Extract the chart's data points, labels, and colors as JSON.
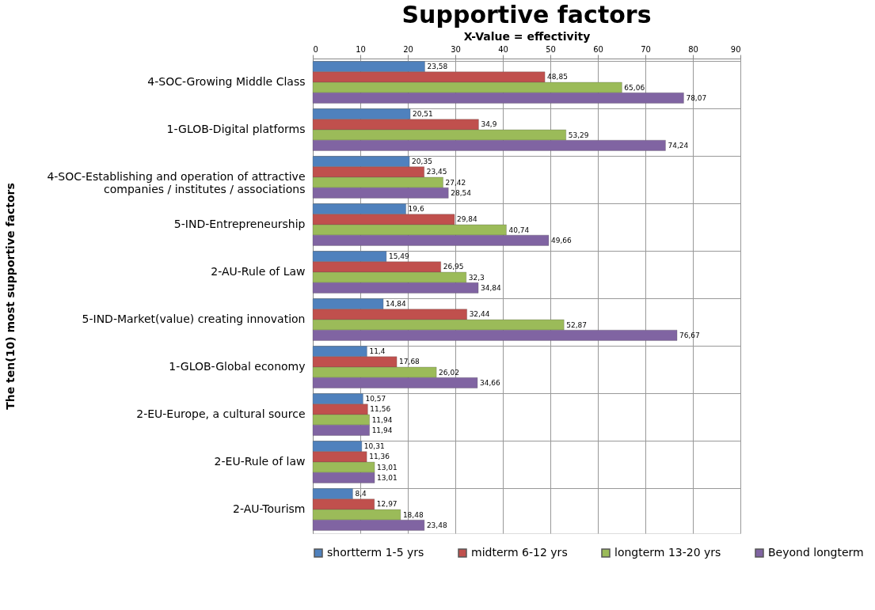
{
  "chart_data": {
    "type": "bar",
    "orientation": "horizontal",
    "title": "Supportive factors",
    "xlabel": "X-Value = effectivity",
    "ylabel": "The ten(10) most supportive factors",
    "categories": [
      "4-SOC-Growing Middle Class",
      "1-GLOB-Digital platforms",
      "4-SOC-Establishing and operation of attractive companies / institutes / associations",
      "5-IND-Entrepreneurship",
      "2-AU-Rule of Law",
      "5-IND-Market(value) creating innovation",
      "1-GLOB-Global economy",
      "2-EU-Europe, a cultural source",
      "2-EU-Rule of law",
      "2-AU-Tourism"
    ],
    "series": [
      {
        "name": "shortterm 1-5 yrs",
        "color": "#4f81bd",
        "values": [
          23.58,
          20.51,
          20.35,
          19.6,
          15.49,
          14.84,
          11.4,
          10.57,
          10.31,
          8.4
        ],
        "value_labels": [
          "23,58",
          "20,51",
          "20,35",
          "19,6",
          "15,49",
          "14,84",
          "11,4",
          "10,57",
          "10,31",
          "8,4"
        ]
      },
      {
        "name": "midterm 6-12 yrs",
        "color": "#c0504d",
        "values": [
          48.85,
          34.9,
          23.45,
          29.84,
          26.95,
          32.44,
          17.68,
          11.56,
          11.36,
          12.97
        ],
        "value_labels": [
          "48,85",
          "34,9",
          "23,45",
          "29,84",
          "26,95",
          "32,44",
          "17,68",
          "11,56",
          "11,36",
          "12,97"
        ]
      },
      {
        "name": "longterm 13-20 yrs",
        "color": "#9bbb59",
        "values": [
          65.06,
          53.29,
          27.42,
          40.74,
          32.3,
          52.87,
          26.02,
          11.94,
          13.01,
          18.48
        ],
        "value_labels": [
          "65,06",
          "53,29",
          "27,42",
          "40,74",
          "32,3",
          "52,87",
          "26,02",
          "11,94",
          "13,01",
          "18,48"
        ]
      },
      {
        "name": "Beyond longterm",
        "color": "#8064a2",
        "values": [
          78.07,
          74.24,
          28.54,
          49.66,
          34.84,
          76.67,
          34.66,
          11.94,
          13.01,
          23.48
        ],
        "value_labels": [
          "78,07",
          "74,24",
          "28,54",
          "49,66",
          "34,84",
          "76,67",
          "34,66",
          "11,94",
          "13,01",
          "23,48"
        ]
      }
    ],
    "xlim": [
      0,
      90
    ],
    "xticks": [
      0,
      10,
      20,
      30,
      40,
      50,
      60,
      70,
      80,
      90
    ],
    "grid": true,
    "legend": "bottom"
  }
}
